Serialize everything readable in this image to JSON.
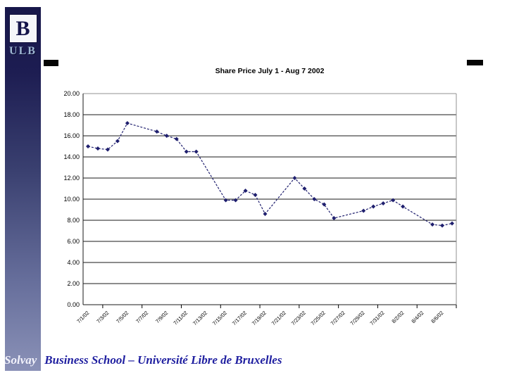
{
  "slide": {
    "logo": {
      "b": "B",
      "ulb": "ULB"
    },
    "footer": {
      "solvay": "Solvay",
      "institution": "Business School – Université Libre de Bruxelles"
    }
  },
  "colors": {
    "bar_top": "#17174a",
    "bar_bottom": "#8a91b7",
    "line": "#1f1f6e",
    "grid": "#1a1a1a",
    "top_border": "#909090",
    "footer_text": "#1f1fa0"
  },
  "chart_data": {
    "type": "line",
    "title": "Share Price July 1 - Aug 7 2002",
    "xlabel": "",
    "ylabel": "",
    "ylim": [
      0,
      20
    ],
    "y_tick_step": 2,
    "y_tick_labels": [
      "0.00",
      "2.00",
      "4.00",
      "6.00",
      "8.00",
      "10.00",
      "12.00",
      "14.00",
      "16.00",
      "18.00",
      "20.00"
    ],
    "x_tick_labels": [
      "7/1/02",
      "7/3/02",
      "7/5/02",
      "7/7/02",
      "7/9/02",
      "7/11/02",
      "7/13/02",
      "7/15/02",
      "7/17/02",
      "7/19/02",
      "7/21/02",
      "7/23/02",
      "7/25/02",
      "7/27/02",
      "7/29/02",
      "7/31/02",
      "8/2/02",
      "8/4/02",
      "8/6/02"
    ],
    "x_label_every_days": 2,
    "x_days_total": 38,
    "grid": "horizontal",
    "legend": "none",
    "line_style": "dashed",
    "marker": "diamond",
    "series": [
      {
        "name": "Share Price",
        "points": [
          {
            "date": "7/1/02",
            "day": 0,
            "value": 15.0
          },
          {
            "date": "7/2/02",
            "day": 1,
            "value": 14.8
          },
          {
            "date": "7/3/02",
            "day": 2,
            "value": 14.7
          },
          {
            "date": "7/4/02",
            "day": 3,
            "value": 15.5
          },
          {
            "date": "7/5/02",
            "day": 4,
            "value": 17.2
          },
          {
            "date": "7/8/02",
            "day": 7,
            "value": 16.4
          },
          {
            "date": "7/9/02",
            "day": 8,
            "value": 16.0
          },
          {
            "date": "7/10/02",
            "day": 9,
            "value": 15.7
          },
          {
            "date": "7/11/02",
            "day": 10,
            "value": 14.5
          },
          {
            "date": "7/12/02",
            "day": 11,
            "value": 14.5
          },
          {
            "date": "7/15/02",
            "day": 14,
            "value": 9.9
          },
          {
            "date": "7/16/02",
            "day": 15,
            "value": 9.9
          },
          {
            "date": "7/17/02",
            "day": 16,
            "value": 10.8
          },
          {
            "date": "7/18/02",
            "day": 17,
            "value": 10.4
          },
          {
            "date": "7/19/02",
            "day": 18,
            "value": 8.6
          },
          {
            "date": "7/22/02",
            "day": 21,
            "value": 12.0
          },
          {
            "date": "7/23/02",
            "day": 22,
            "value": 11.0
          },
          {
            "date": "7/24/02",
            "day": 23,
            "value": 10.0
          },
          {
            "date": "7/25/02",
            "day": 24,
            "value": 9.5
          },
          {
            "date": "7/26/02",
            "day": 25,
            "value": 8.2
          },
          {
            "date": "7/29/02",
            "day": 28,
            "value": 8.9
          },
          {
            "date": "7/30/02",
            "day": 29,
            "value": 9.3
          },
          {
            "date": "7/31/02",
            "day": 30,
            "value": 9.6
          },
          {
            "date": "8/1/02",
            "day": 31,
            "value": 9.9
          },
          {
            "date": "8/2/02",
            "day": 32,
            "value": 9.3
          },
          {
            "date": "8/5/02",
            "day": 35,
            "value": 7.6
          },
          {
            "date": "8/6/02",
            "day": 36,
            "value": 7.5
          },
          {
            "date": "8/7/02",
            "day": 37,
            "value": 7.7
          }
        ]
      }
    ]
  }
}
